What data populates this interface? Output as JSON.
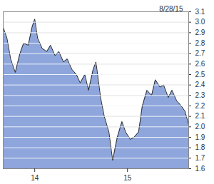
{
  "chart_data": {
    "type": "area",
    "title": "8/28/15",
    "color": "#8ea6dc",
    "grid": true,
    "x": [
      2013.66,
      2013.7,
      2013.74,
      2013.79,
      2013.84,
      2013.88,
      2013.93,
      2013.97,
      2014.0,
      2014.03,
      2014.08,
      2014.13,
      2014.17,
      2014.22,
      2014.26,
      2014.31,
      2014.35,
      2014.4,
      2014.45,
      2014.49,
      2014.54,
      2014.58,
      2014.63,
      2014.66,
      2014.71,
      2014.75,
      2014.8,
      2014.84,
      2014.89,
      2014.94,
      2014.98,
      2015.03,
      2015.07,
      2015.12,
      2015.16,
      2015.21,
      2015.26,
      2015.3,
      2015.35,
      2015.39,
      2015.44,
      2015.48,
      2015.53,
      2015.58,
      2015.62,
      2015.66
    ],
    "values": [
      2.95,
      2.85,
      2.65,
      2.52,
      2.7,
      2.8,
      2.78,
      2.95,
      3.03,
      2.85,
      2.75,
      2.72,
      2.78,
      2.68,
      2.72,
      2.62,
      2.65,
      2.55,
      2.5,
      2.42,
      2.5,
      2.35,
      2.55,
      2.62,
      2.28,
      2.1,
      1.95,
      1.68,
      1.9,
      2.05,
      1.95,
      1.88,
      1.9,
      1.95,
      2.2,
      2.35,
      2.3,
      2.45,
      2.38,
      2.4,
      2.28,
      2.35,
      2.25,
      2.2,
      2.15,
      2.02
    ],
    "xlim": [
      2013.66,
      2015.66
    ],
    "xticks": [
      {
        "value": 2014,
        "label": "14"
      },
      {
        "value": 2015,
        "label": "15"
      }
    ],
    "ylim": [
      1.6,
      3.1
    ],
    "yticks": [
      1.6,
      1.7,
      1.8,
      1.9,
      {
        "value": 2.0,
        "label": "2.0"
      },
      2.1,
      2.2,
      2.3,
      2.4,
      2.5,
      2.6,
      2.7,
      2.8,
      2.9,
      {
        "value": 3.0,
        "label": "3.0"
      },
      3.1
    ]
  }
}
